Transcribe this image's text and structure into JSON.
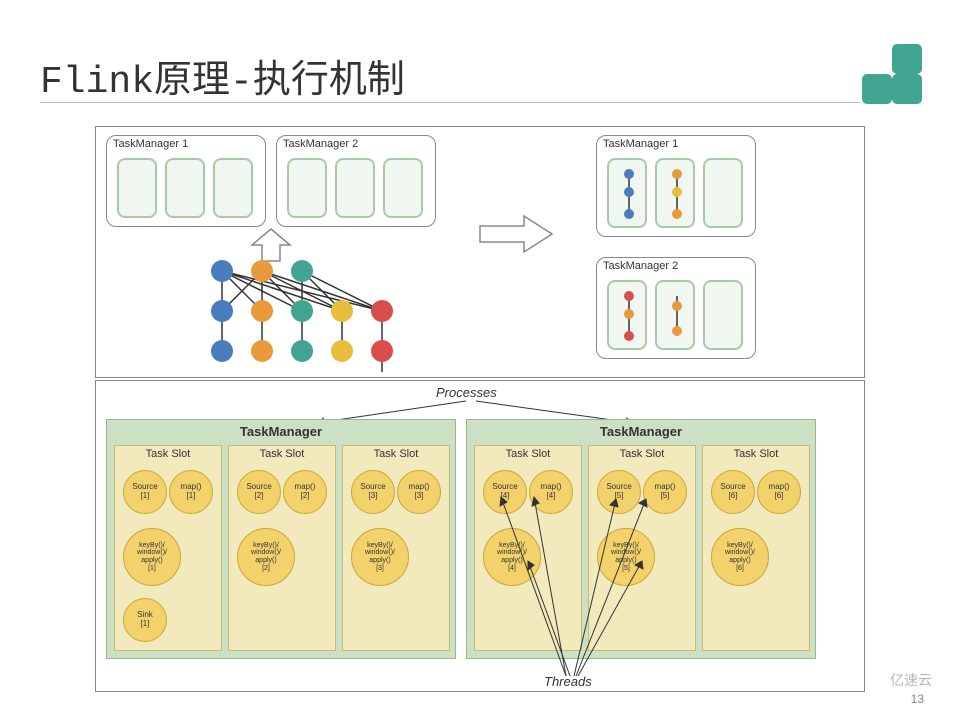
{
  "title": "Flink原理-执行机制",
  "page_number": "13",
  "watermark": "亿速云",
  "panel1": {
    "tm1_label": "TaskManager 1",
    "tm2_label": "TaskManager 2",
    "tm1r_label": "TaskManager 1",
    "tm2r_label": "TaskManager 2",
    "colors": {
      "blue": "#4a7dc0",
      "orange": "#e89a3c",
      "green": "#42a591",
      "red": "#d94d4d",
      "yellow": "#e8bd3c",
      "slot_border": "#a4cca4",
      "slot_fill": "#f0f6f0"
    }
  },
  "panel2": {
    "processes_label": "Processes",
    "threads_label": "Threads",
    "tm_label": "TaskManager",
    "slot_label": "Task Slot",
    "ops": {
      "source": "Source",
      "map": "map()",
      "keyby": "keyBy()/\nwindow()/\napply()",
      "sink": "Sink"
    },
    "indices": [
      "[1]",
      "[2]",
      "[3]",
      "[4]",
      "[5]",
      "[6]"
    ],
    "colors": {
      "tm_fill": "#cce0c4",
      "tm_border": "#99b88f",
      "slot_fill": "#f2e9bd",
      "slot_border": "#c7b876",
      "op_fill": "#f3d26b",
      "op_border": "#c9a63a"
    }
  }
}
